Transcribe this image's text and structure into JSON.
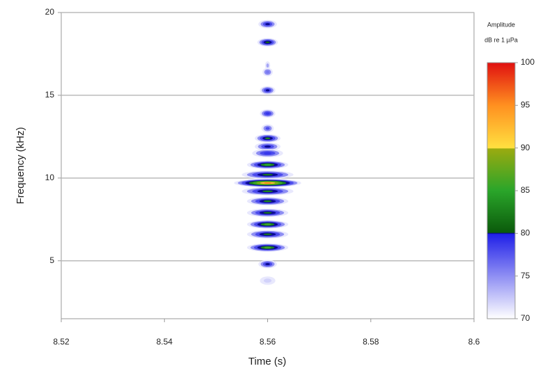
{
  "chart_data": {
    "type": "spectrogram",
    "x_label": "Time (s)",
    "y_label": "Frequency (kHz)",
    "colorbar_title": "Amplitude",
    "colorbar_unit": "dB re 1 µPa",
    "xlim": [
      8.52,
      8.6
    ],
    "xticks": [
      8.52,
      8.54,
      8.56,
      8.58,
      8.6
    ],
    "ylim": [
      1.5,
      20
    ],
    "yticks": [
      5,
      10,
      15,
      20
    ],
    "grid": true,
    "clim": [
      70,
      100
    ],
    "cticks": [
      70,
      75,
      80,
      85,
      90,
      95,
      100
    ],
    "colorscale": [
      [
        70,
        "#ffffff"
      ],
      [
        79.9,
        "#2020e8"
      ],
      [
        80,
        "#0a0a90"
      ],
      [
        80.1,
        "#0b5a0b"
      ],
      [
        85,
        "#2aa52a"
      ],
      [
        89.9,
        "#9aaa10"
      ],
      [
        90,
        "#ffe040"
      ],
      [
        95,
        "#ff9020"
      ],
      [
        100,
        "#e01010"
      ]
    ],
    "x": [
      8.56,
      8.56,
      8.56,
      8.56,
      8.56,
      8.56,
      8.56,
      8.56,
      8.56,
      8.56,
      8.56,
      8.56,
      8.56,
      8.56,
      8.56,
      8.56,
      8.56,
      8.56,
      8.56,
      8.56,
      8.56
    ],
    "y": [
      19.3,
      18.2,
      16.8,
      16.4,
      15.3,
      13.9,
      13.0,
      12.4,
      11.9,
      11.5,
      10.8,
      10.2,
      9.7,
      9.2,
      8.6,
      7.9,
      7.2,
      6.6,
      5.8,
      4.8,
      3.8
    ],
    "values": [
      80,
      81,
      74,
      76,
      80,
      79,
      78,
      83,
      80,
      79,
      85,
      82,
      95,
      83,
      83,
      82,
      86,
      82,
      86,
      80,
      72
    ],
    "half_width": [
      0.0018,
      0.002,
      0.0005,
      0.001,
      0.0015,
      0.0015,
      0.0012,
      0.0025,
      0.0025,
      0.003,
      0.004,
      0.005,
      0.0065,
      0.005,
      0.004,
      0.004,
      0.004,
      0.004,
      0.004,
      0.0018,
      0.0015
    ]
  }
}
